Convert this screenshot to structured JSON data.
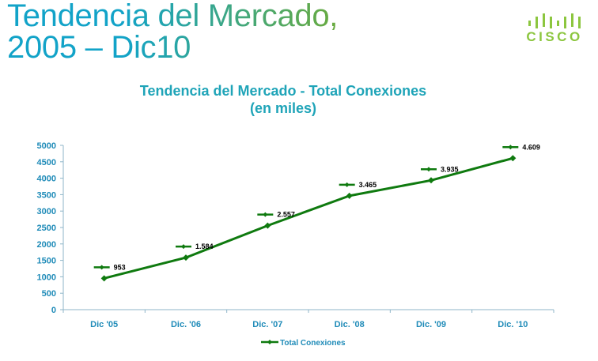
{
  "slide": {
    "title_line1": "Tendencia del Mercado,",
    "title_line2": "2005 – Dic10"
  },
  "logo": {
    "text": "CISCO",
    "color": "#8cc63f"
  },
  "colors": {
    "title_gradient_start": "#12a3c8",
    "title_gradient_end": "#6aab3e",
    "chart_title": "#1fa4b8",
    "series": "#0f7a0f",
    "axis_labels": "#1f8bb8"
  },
  "chart_data": {
    "type": "line",
    "title_line1": "Tendencia del Mercado - Total Conexiones",
    "title_line2": "(en miles)",
    "categories": [
      "Dic '05",
      "Dic. '06",
      "Dic.  '07",
      "Dic. '08",
      "Dic.  '09",
      "Dic.  '10"
    ],
    "series": [
      {
        "name": "Total Conexiones",
        "values": [
          953,
          1584,
          2557,
          3465,
          3935,
          4609
        ],
        "labels": [
          "953",
          "1.584",
          "2.557",
          "3.465",
          "3.935",
          "4.609"
        ],
        "marker": "diamond"
      }
    ],
    "yticks": [
      "0",
      "500",
      "1000",
      "1500",
      "2000",
      "2500",
      "3000",
      "3500",
      "4000",
      "4500",
      "5000"
    ],
    "ylim": [
      0,
      5000
    ],
    "grid": false,
    "legend_position": "bottom"
  }
}
